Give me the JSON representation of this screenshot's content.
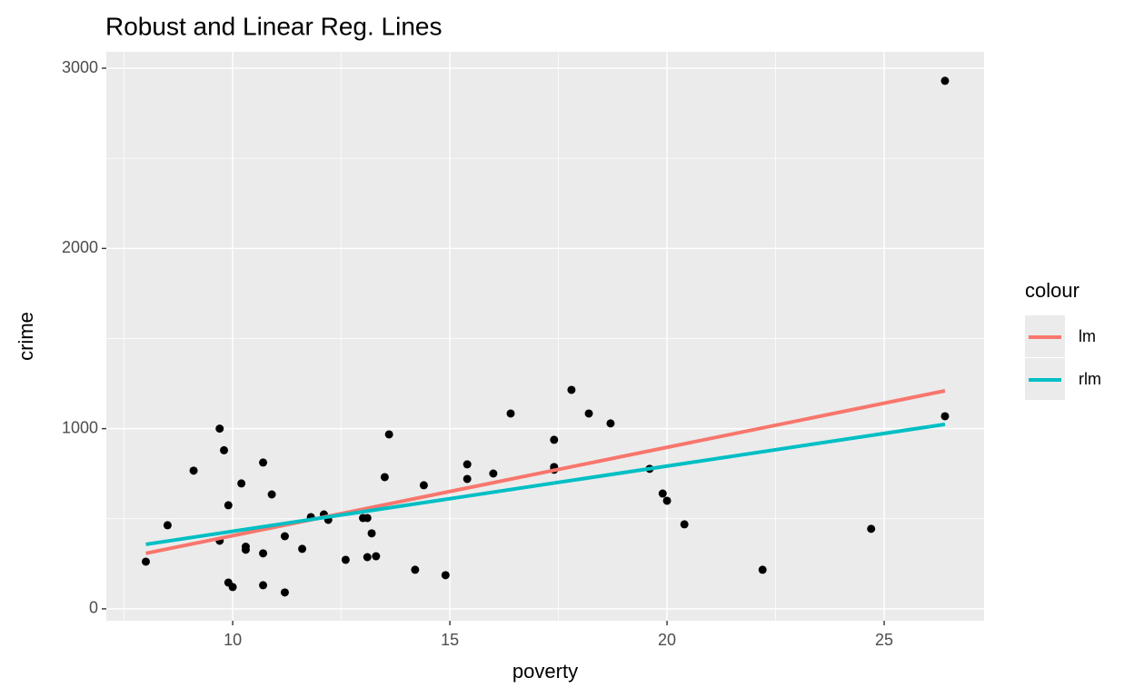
{
  "chart_data": {
    "type": "scatter",
    "title": "Robust and Linear Reg. Lines",
    "x_label": "poverty",
    "y_label": "crime",
    "legend_title": "colour",
    "point_color": "#000000",
    "points": {
      "x": [
        8.0,
        8.5,
        9.1,
        9.7,
        9.8,
        9.7,
        9.9,
        9.9,
        10.0,
        10.2,
        10.3,
        10.3,
        10.7,
        10.7,
        10.7,
        10.9,
        11.2,
        11.2,
        11.6,
        11.8,
        12.1,
        12.2,
        12.6,
        13.0,
        13.1,
        13.1,
        13.2,
        13.3,
        13.5,
        13.6,
        14.2,
        14.4,
        14.9,
        15.4,
        15.4,
        16.0,
        16.4,
        17.4,
        17.4,
        17.4,
        17.8,
        18.2,
        18.7,
        19.6,
        19.9,
        20.0,
        20.4,
        22.2,
        24.7,
        26.4,
        26.4
      ],
      "y": [
        262,
        464,
        767,
        1000,
        880,
        378,
        575,
        146,
        121,
        696,
        345,
        328,
        812,
        308,
        131,
        635,
        403,
        91,
        333,
        509,
        524,
        494,
        272,
        504,
        504,
        287,
        419,
        292,
        731,
        968,
        217,
        686,
        187,
        802,
        721,
        751,
        1084,
        938,
        787,
        772,
        1215,
        1084,
        1029,
        777,
        640,
        600,
        469,
        217,
        444,
        2930,
        1069
      ]
    },
    "series": [
      {
        "name": "lm",
        "color": "#f8766d",
        "x": [
          8.0,
          26.4
        ],
        "values": [
          308,
          1210
        ]
      },
      {
        "name": "rlm",
        "color": "#00bfc4",
        "x": [
          8.0,
          26.4
        ],
        "values": [
          358,
          1024
        ]
      }
    ],
    "xlim": [
      7.09,
      27.3
    ],
    "ylim": [
      -66,
      3091
    ],
    "xticks": [
      10,
      15,
      20,
      25
    ],
    "yticks": [
      0,
      1000,
      2000,
      3000
    ],
    "grid": true
  }
}
